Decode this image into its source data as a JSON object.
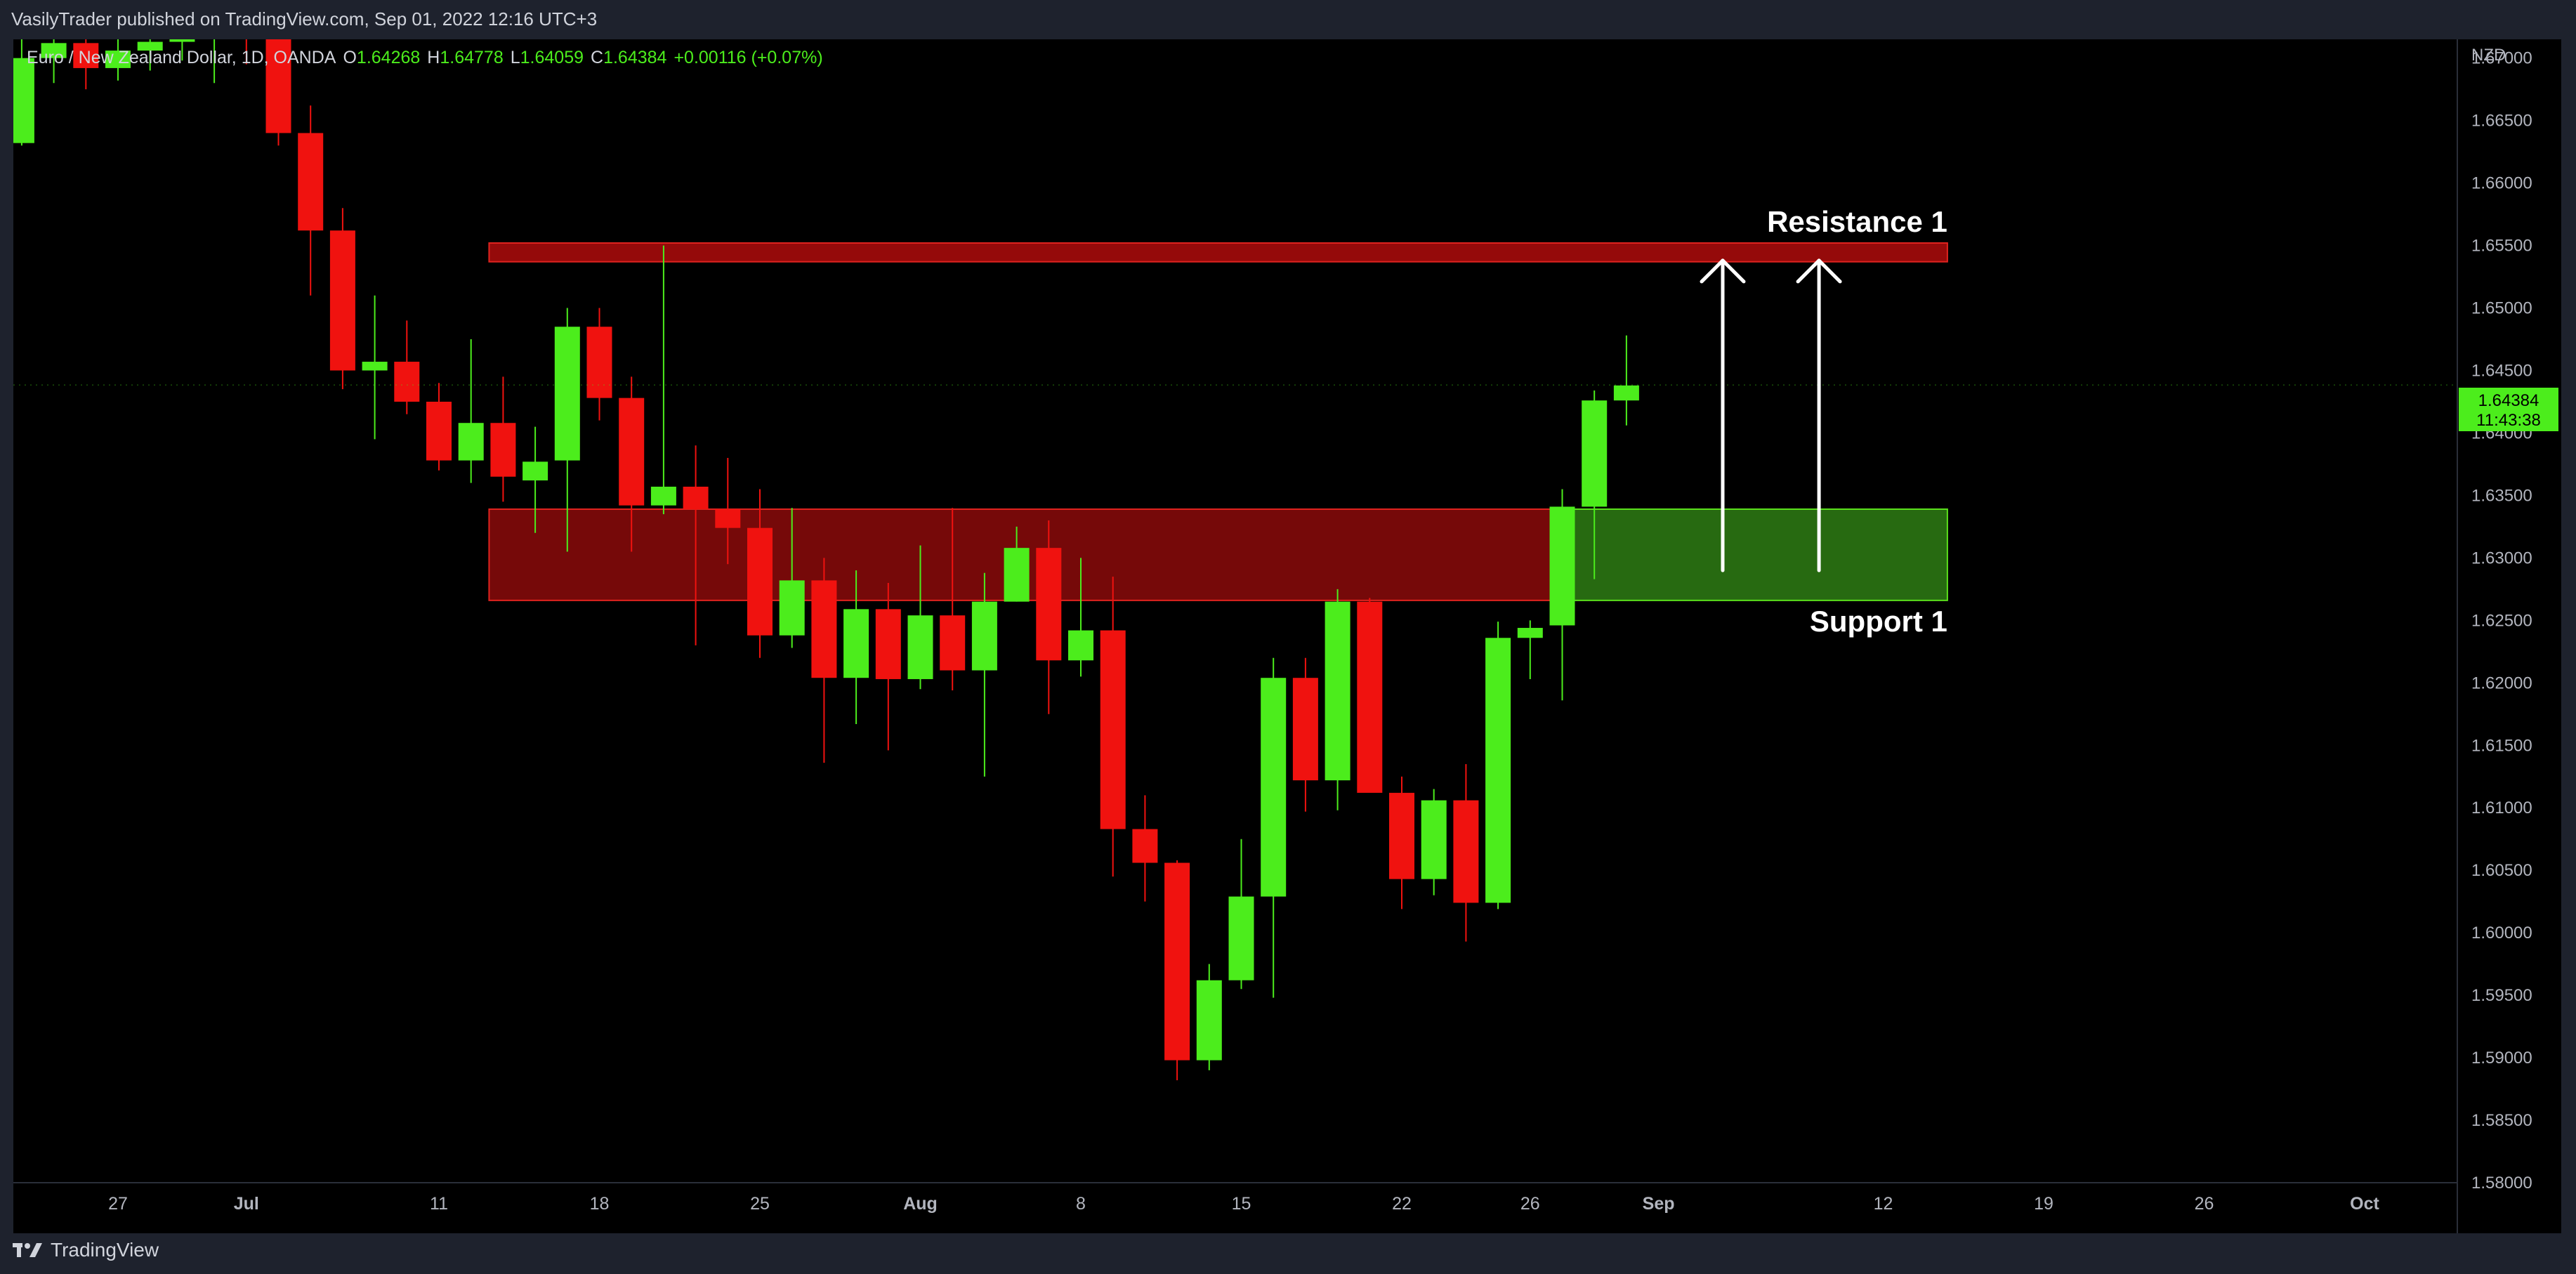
{
  "header": {
    "published": "VasilyTrader published on TradingView.com, Sep 01, 2022 12:16 UTC+3"
  },
  "legend": {
    "symbol": "Euro / New Zealand Dollar, 1D, OANDA",
    "open_label": "O",
    "open": "1.64268",
    "high_label": "H",
    "high": "1.64778",
    "low_label": "L",
    "low": "1.64059",
    "close_label": "C",
    "close": "1.64384",
    "change": "+0.00116 (+0.07%)"
  },
  "price_badge": {
    "price": "1.64384",
    "countdown": "11:43:38"
  },
  "footer": {
    "brand": "TradingView"
  },
  "colors": {
    "background": "#000000",
    "up": "#4ced1c",
    "down": "#f0120f",
    "resistance_zone": "#a50b0b",
    "support_zone_red": "#8b0a0a",
    "support_zone_green": "#2e7d14",
    "arrow": "#ffffff",
    "axis_text": "#b2b5be"
  },
  "chart_data": {
    "type": "candlestick",
    "title": "Euro / New Zealand Dollar, 1D, OANDA",
    "y_axis": {
      "unit": "NZD",
      "range": [
        1.58,
        1.6715
      ],
      "tick_labels": [
        "1.67000",
        "1.66500",
        "1.66000",
        "1.65500",
        "1.65000",
        "1.64500",
        "1.64000",
        "1.63500",
        "1.63000",
        "1.62500",
        "1.62000",
        "1.61500",
        "1.61000",
        "1.60500",
        "1.60000",
        "1.59500",
        "1.59000",
        "1.58500",
        "1.58000"
      ]
    },
    "x_axis": {
      "tick_labels": [
        {
          "label": "27",
          "date": "2022-06-27"
        },
        {
          "label": "Jul",
          "date": "2022-07-01"
        },
        {
          "label": "11",
          "date": "2022-07-11"
        },
        {
          "label": "18",
          "date": "2022-07-18"
        },
        {
          "label": "25",
          "date": "2022-07-25"
        },
        {
          "label": "Aug",
          "date": "2022-08-01"
        },
        {
          "label": "8",
          "date": "2022-08-08"
        },
        {
          "label": "15",
          "date": "2022-08-15"
        },
        {
          "label": "22",
          "date": "2022-08-22"
        },
        {
          "label": "26",
          "date": "2022-08-26"
        },
        {
          "label": "Sep",
          "date": "2022-09-01"
        },
        {
          "label": "12",
          "date": "2022-09-12"
        },
        {
          "label": "19",
          "date": "2022-09-19"
        },
        {
          "label": "26",
          "date": "2022-09-26"
        },
        {
          "label": "Oct",
          "date": "2022-10-03"
        }
      ]
    },
    "candles": [
      {
        "date": "2022-06-22",
        "o": 1.6632,
        "h": 1.6725,
        "l": 1.663,
        "c": 1.67
      },
      {
        "date": "2022-06-23",
        "o": 1.67,
        "h": 1.672,
        "l": 1.668,
        "c": 1.6712
      },
      {
        "date": "2022-06-24",
        "o": 1.6712,
        "h": 1.6725,
        "l": 1.6675,
        "c": 1.6692
      },
      {
        "date": "2022-06-27",
        "o": 1.6692,
        "h": 1.6725,
        "l": 1.6682,
        "c": 1.6706
      },
      {
        "date": "2022-06-28",
        "o": 1.6706,
        "h": 1.6725,
        "l": 1.669,
        "c": 1.6713
      },
      {
        "date": "2022-06-29",
        "o": 1.6713,
        "h": 1.6725,
        "l": 1.6698,
        "c": 1.6716
      },
      {
        "date": "2022-06-30",
        "o": 1.6716,
        "h": 1.6725,
        "l": 1.668,
        "c": 1.6719
      },
      {
        "date": "2022-07-01",
        "o": 1.6719,
        "h": 1.6725,
        "l": 1.6695,
        "c": 1.6716
      },
      {
        "date": "2022-07-04",
        "o": 1.6716,
        "h": 1.6725,
        "l": 1.663,
        "c": 1.664
      },
      {
        "date": "2022-07-05",
        "o": 1.664,
        "h": 1.6662,
        "l": 1.651,
        "c": 1.6562
      },
      {
        "date": "2022-07-06",
        "o": 1.6562,
        "h": 1.658,
        "l": 1.6435,
        "c": 1.645
      },
      {
        "date": "2022-07-07",
        "o": 1.645,
        "h": 1.651,
        "l": 1.6395,
        "c": 1.6457
      },
      {
        "date": "2022-07-08",
        "o": 1.6457,
        "h": 1.649,
        "l": 1.6415,
        "c": 1.6425
      },
      {
        "date": "2022-07-11",
        "o": 1.6425,
        "h": 1.644,
        "l": 1.637,
        "c": 1.6378
      },
      {
        "date": "2022-07-12",
        "o": 1.6378,
        "h": 1.6475,
        "l": 1.636,
        "c": 1.6408
      },
      {
        "date": "2022-07-13",
        "o": 1.6408,
        "h": 1.6445,
        "l": 1.6345,
        "c": 1.6365
      },
      {
        "date": "2022-07-14",
        "o": 1.6362,
        "h": 1.6405,
        "l": 1.632,
        "c": 1.6377
      },
      {
        "date": "2022-07-15",
        "o": 1.6378,
        "h": 1.65,
        "l": 1.6305,
        "c": 1.6485
      },
      {
        "date": "2022-07-18",
        "o": 1.6485,
        "h": 1.65,
        "l": 1.641,
        "c": 1.6428
      },
      {
        "date": "2022-07-19",
        "o": 1.6428,
        "h": 1.6445,
        "l": 1.6305,
        "c": 1.6342
      },
      {
        "date": "2022-07-20",
        "o": 1.6342,
        "h": 1.655,
        "l": 1.6335,
        "c": 1.6357
      },
      {
        "date": "2022-07-21",
        "o": 1.6357,
        "h": 1.639,
        "l": 1.623,
        "c": 1.6339
      },
      {
        "date": "2022-07-22",
        "o": 1.6339,
        "h": 1.638,
        "l": 1.6295,
        "c": 1.6324
      },
      {
        "date": "2022-07-25",
        "o": 1.6324,
        "h": 1.6355,
        "l": 1.622,
        "c": 1.6238
      },
      {
        "date": "2022-07-26",
        "o": 1.6238,
        "h": 1.634,
        "l": 1.6228,
        "c": 1.6282
      },
      {
        "date": "2022-07-27",
        "o": 1.6282,
        "h": 1.63,
        "l": 1.6136,
        "c": 1.6204
      },
      {
        "date": "2022-07-28",
        "o": 1.6204,
        "h": 1.629,
        "l": 1.6167,
        "c": 1.6259
      },
      {
        "date": "2022-07-29",
        "o": 1.6259,
        "h": 1.628,
        "l": 1.6146,
        "c": 1.6203
      },
      {
        "date": "2022-08-01",
        "o": 1.6203,
        "h": 1.631,
        "l": 1.6195,
        "c": 1.6254
      },
      {
        "date": "2022-08-02",
        "o": 1.6254,
        "h": 1.634,
        "l": 1.6194,
        "c": 1.621
      },
      {
        "date": "2022-08-03",
        "o": 1.621,
        "h": 1.6288,
        "l": 1.6125,
        "c": 1.6265
      },
      {
        "date": "2022-08-04",
        "o": 1.6265,
        "h": 1.6325,
        "l": 1.6265,
        "c": 1.6308
      },
      {
        "date": "2022-08-05",
        "o": 1.6308,
        "h": 1.633,
        "l": 1.6175,
        "c": 1.6218
      },
      {
        "date": "2022-08-08",
        "o": 1.6218,
        "h": 1.63,
        "l": 1.6205,
        "c": 1.6242
      },
      {
        "date": "2022-08-09",
        "o": 1.6242,
        "h": 1.6285,
        "l": 1.6045,
        "c": 1.6083
      },
      {
        "date": "2022-08-10",
        "o": 1.6083,
        "h": 1.611,
        "l": 1.6025,
        "c": 1.6056
      },
      {
        "date": "2022-08-11",
        "o": 1.6056,
        "h": 1.6058,
        "l": 1.5882,
        "c": 1.5898
      },
      {
        "date": "2022-08-12",
        "o": 1.5898,
        "h": 1.5975,
        "l": 1.589,
        "c": 1.5962
      },
      {
        "date": "2022-08-15",
        "o": 1.5962,
        "h": 1.6075,
        "l": 1.5955,
        "c": 1.6029
      },
      {
        "date": "2022-08-16",
        "o": 1.6029,
        "h": 1.622,
        "l": 1.5948,
        "c": 1.6204
      },
      {
        "date": "2022-08-17",
        "o": 1.6204,
        "h": 1.622,
        "l": 1.6097,
        "c": 1.6122
      },
      {
        "date": "2022-08-18",
        "o": 1.6122,
        "h": 1.6275,
        "l": 1.6098,
        "c": 1.6265
      },
      {
        "date": "2022-08-19",
        "o": 1.6265,
        "h": 1.6268,
        "l": 1.6115,
        "c": 1.6112
      },
      {
        "date": "2022-08-22",
        "o": 1.6112,
        "h": 1.6125,
        "l": 1.6019,
        "c": 1.6043
      },
      {
        "date": "2022-08-23",
        "o": 1.6043,
        "h": 1.6115,
        "l": 1.603,
        "c": 1.6106
      },
      {
        "date": "2022-08-24",
        "o": 1.6106,
        "h": 1.6135,
        "l": 1.5993,
        "c": 1.6024
      },
      {
        "date": "2022-08-25",
        "o": 1.6024,
        "h": 1.6249,
        "l": 1.6019,
        "c": 1.6236
      },
      {
        "date": "2022-08-26",
        "o": 1.6236,
        "h": 1.625,
        "l": 1.6203,
        "c": 1.6244
      },
      {
        "date": "2022-08-29",
        "o": 1.6246,
        "h": 1.6355,
        "l": 1.6186,
        "c": 1.6341
      },
      {
        "date": "2022-08-30",
        "o": 1.6341,
        "h": 1.6434,
        "l": 1.6283,
        "c": 1.6426
      },
      {
        "date": "2022-08-31",
        "o": 1.6426,
        "h": 1.6478,
        "l": 1.6406,
        "c": 1.6438
      }
    ],
    "annotations": [
      {
        "type": "zone",
        "label": "Resistance 1",
        "from_date": "2022-07-13",
        "to_date": "2022-09-14",
        "y_range": [
          1.6537,
          1.6552
        ]
      },
      {
        "type": "zone",
        "label": "Support 1",
        "from_date": "2022-07-13",
        "to_date": "2022-09-14",
        "y_range": [
          1.6266,
          1.6339
        ]
      },
      {
        "type": "arrow",
        "date": "2022-09-05",
        "from": 1.629,
        "to": 1.6538
      },
      {
        "type": "arrow",
        "date": "2022-09-08",
        "from": 1.629,
        "to": 1.6538
      }
    ],
    "current_price": 1.64384
  }
}
